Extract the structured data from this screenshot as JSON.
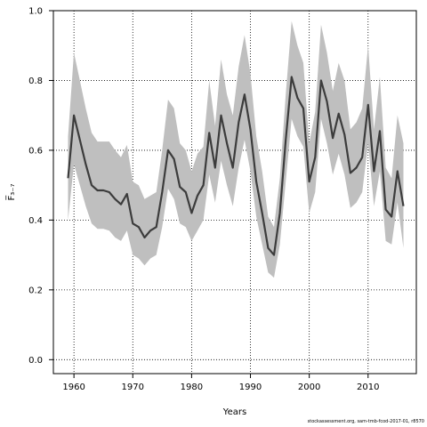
{
  "chart_data": {
    "type": "line",
    "title": "",
    "xlabel": "Years",
    "ylabel": "F̅₃₋₇",
    "xlim": [
      1956.5,
      2018.2
    ],
    "ylim": [
      -0.04,
      1.0
    ],
    "xticks": [
      1960,
      1970,
      1980,
      1990,
      2000,
      2010
    ],
    "yticks": [
      0.0,
      0.2,
      0.4,
      0.6,
      0.8,
      1.0
    ],
    "xtick_labels": [
      "1960",
      "1970",
      "1980",
      "1990",
      "2000",
      "2010"
    ],
    "ytick_labels": [
      "0.0",
      "0.2",
      "0.4",
      "0.6",
      "0.8",
      "1.0"
    ],
    "grid": "dotted",
    "colors": {
      "line": "#3c3c3c",
      "band": "#bfbfbf",
      "grid": "#000000"
    },
    "series": [
      {
        "x": [
          1959,
          1960,
          1961,
          1962,
          1963,
          1964,
          1965,
          1966,
          1967,
          1968,
          1969,
          1970,
          1971,
          1972,
          1973,
          1974,
          1975,
          1976,
          1977,
          1978,
          1979,
          1980,
          1981,
          1982,
          1983,
          1984,
          1985,
          1986,
          1987,
          1988,
          1989,
          1990,
          1991,
          1992,
          1993,
          1994,
          1995,
          1996,
          1997,
          1998,
          1999,
          2000,
          2001,
          2002,
          2003,
          2004,
          2005,
          2006,
          2007,
          2008,
          2009,
          2010,
          2011,
          2012,
          2013,
          2014,
          2015,
          2016
        ],
        "values": [
          0.52,
          0.7,
          0.63,
          0.56,
          0.5,
          0.485,
          0.485,
          0.48,
          0.46,
          0.445,
          0.475,
          0.39,
          0.38,
          0.35,
          0.37,
          0.38,
          0.48,
          0.6,
          0.575,
          0.495,
          0.48,
          0.42,
          0.47,
          0.5,
          0.65,
          0.55,
          0.7,
          0.62,
          0.55,
          0.68,
          0.76,
          0.66,
          0.51,
          0.42,
          0.32,
          0.3,
          0.42,
          0.63,
          0.81,
          0.75,
          0.72,
          0.51,
          0.58,
          0.8,
          0.74,
          0.635,
          0.705,
          0.645,
          0.535,
          0.55,
          0.58,
          0.73,
          0.54,
          0.655,
          0.43,
          0.41,
          0.54,
          0.44
        ],
        "lower": [
          0.4,
          0.56,
          0.5,
          0.44,
          0.39,
          0.375,
          0.375,
          0.37,
          0.35,
          0.34,
          0.37,
          0.3,
          0.29,
          0.27,
          0.29,
          0.3,
          0.38,
          0.49,
          0.46,
          0.39,
          0.38,
          0.34,
          0.37,
          0.4,
          0.53,
          0.45,
          0.57,
          0.5,
          0.44,
          0.55,
          0.63,
          0.54,
          0.41,
          0.33,
          0.25,
          0.235,
          0.33,
          0.51,
          0.69,
          0.64,
          0.61,
          0.42,
          0.48,
          0.69,
          0.62,
          0.53,
          0.59,
          0.53,
          0.435,
          0.45,
          0.48,
          0.62,
          0.44,
          0.54,
          0.34,
          0.33,
          0.45,
          0.32
        ],
        "upper": [
          0.64,
          0.88,
          0.8,
          0.72,
          0.65,
          0.625,
          0.625,
          0.625,
          0.6,
          0.58,
          0.615,
          0.51,
          0.5,
          0.46,
          0.47,
          0.48,
          0.6,
          0.745,
          0.72,
          0.62,
          0.6,
          0.54,
          0.59,
          0.61,
          0.8,
          0.67,
          0.86,
          0.76,
          0.7,
          0.84,
          0.93,
          0.82,
          0.64,
          0.54,
          0.41,
          0.38,
          0.52,
          0.76,
          0.97,
          0.9,
          0.85,
          0.62,
          0.71,
          0.96,
          0.88,
          0.77,
          0.85,
          0.8,
          0.66,
          0.68,
          0.72,
          0.9,
          0.66,
          0.81,
          0.55,
          0.52,
          0.7,
          0.62
        ]
      }
    ]
  },
  "footer": {
    "source": "stockassessment.org, sam-tmb-fcod-2017-01, r8570"
  }
}
